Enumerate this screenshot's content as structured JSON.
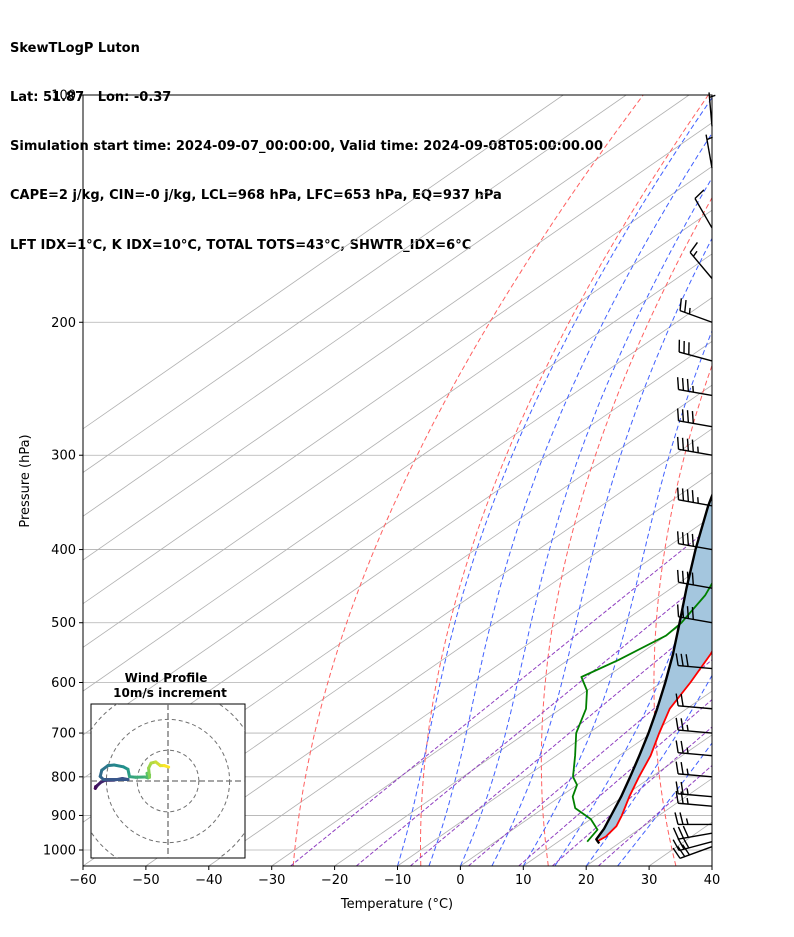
{
  "header": {
    "line1": "SkewTLogP Luton",
    "line2": "Lat: 51.87   Lon: -0.37",
    "line3": "Simulation start time: 2024-09-07_00:00:00, Valid time: 2024-09-08T05:00:00.00",
    "line4": "CAPE=2 j/kg, CIN=-0 j/kg, LCL=968 hPa, LFC=653 hPa, EQ=937 hPa",
    "line5": "LFT IDX=1°C, K IDX=10°C, TOTAL TOTS=43°C, SHWTR_IDX=6°C"
  },
  "chart_data": {
    "type": "skewt",
    "xlabel": "Temperature (°C)",
    "ylabel": "Pressure (hPa)",
    "xlim": [
      -60,
      40
    ],
    "ylim": [
      1050,
      100
    ],
    "x_ticks": [
      -60,
      -50,
      -40,
      -30,
      -20,
      -10,
      0,
      10,
      20,
      30,
      40
    ],
    "x_tick_labels": [
      "−60",
      "−50",
      "−40",
      "−30",
      "−20",
      "−10",
      "0",
      "10",
      "20",
      "30",
      "40"
    ],
    "y_ticks": [
      1000,
      900,
      800,
      700,
      600,
      500,
      400,
      300,
      200,
      100
    ],
    "grid": true,
    "skew_deg_per_logp": 75,
    "dry_adiabats_theta_C": [
      -30,
      -10,
      10,
      30,
      50,
      70,
      90,
      110,
      130
    ],
    "moist_adiabats_C": [
      -10,
      -5,
      0,
      5,
      10,
      15,
      20,
      25
    ],
    "mixing_ratio_lines": [
      0.4,
      1,
      2,
      4,
      7,
      10,
      16
    ],
    "colors": {
      "temperature": "#ff0000",
      "dewpoint": "#008000",
      "parcel": "#000000",
      "cape_fill": "#a4c6de",
      "dry_adiabat": "#ff6060",
      "moist_adiabat": "#4060ff",
      "mixing_ratio": "#9040c0",
      "isotherm": "#b0b0b0"
    },
    "temperature": [
      {
        "p": 975,
        "t": 16.1
      },
      {
        "p": 960,
        "t": 16.4
      },
      {
        "p": 930,
        "t": 15.7
      },
      {
        "p": 900,
        "t": 14.1
      },
      {
        "p": 850,
        "t": 11.0
      },
      {
        "p": 800,
        "t": 8.0
      },
      {
        "p": 750,
        "t": 5.0
      },
      {
        "p": 700,
        "t": 1.2
      },
      {
        "p": 650,
        "t": -2.7
      },
      {
        "p": 600,
        "t": -5.4
      },
      {
        "p": 550,
        "t": -8.7
      },
      {
        "p": 500,
        "t": -13.0
      },
      {
        "p": 450,
        "t": -19.0
      },
      {
        "p": 400,
        "t": -25.0
      },
      {
        "p": 350,
        "t": -32.3
      },
      {
        "p": 300,
        "t": -41.0
      },
      {
        "p": 270,
        "t": -47.0
      },
      {
        "p": 250,
        "t": -50.0
      },
      {
        "p": 220,
        "t": -53.5
      },
      {
        "p": 200,
        "t": -55.0
      },
      {
        "p": 185,
        "t": -55.5
      },
      {
        "p": 170,
        "t": -56.8
      },
      {
        "p": 150,
        "t": -58.0
      },
      {
        "p": 130,
        "t": -58.5
      },
      {
        "p": 115,
        "t": -57.7
      },
      {
        "p": 100,
        "t": -57.0
      }
    ],
    "dewpoint": [
      {
        "p": 975,
        "t": 14.6
      },
      {
        "p": 940,
        "t": 13.5
      },
      {
        "p": 910,
        "t": 10.0
      },
      {
        "p": 880,
        "t": 5.0
      },
      {
        "p": 850,
        "t": 2.0
      },
      {
        "p": 820,
        "t": 0.0
      },
      {
        "p": 800,
        "t": -2.5
      },
      {
        "p": 750,
        "t": -7.0
      },
      {
        "p": 700,
        "t": -12.0
      },
      {
        "p": 650,
        "t": -16.0
      },
      {
        "p": 615,
        "t": -20.0
      },
      {
        "p": 590,
        "t": -24.0
      },
      {
        "p": 560,
        "t": -22.0
      },
      {
        "p": 520,
        "t": -20.0
      },
      {
        "p": 500,
        "t": -20.5
      },
      {
        "p": 460,
        "t": -23.0
      },
      {
        "p": 430,
        "t": -26.0
      },
      {
        "p": 400,
        "t": -29.0
      },
      {
        "p": 350,
        "t": -33.5
      },
      {
        "p": 300,
        "t": -38.5
      },
      {
        "p": 250,
        "t": -44.5
      },
      {
        "p": 220,
        "t": -49.5
      },
      {
        "p": 200,
        "t": -53.5
      },
      {
        "p": 190,
        "t": -56.0
      },
      {
        "p": 175,
        "t": -58.5
      },
      {
        "p": 160,
        "t": -60.5
      },
      {
        "p": 140,
        "t": -63.0
      },
      {
        "p": 120,
        "t": -66.0
      },
      {
        "p": 100,
        "t": -70.0
      }
    ],
    "parcel": [
      {
        "p": 980,
        "t": 16.9
      },
      {
        "p": 968,
        "t": 15.5
      },
      {
        "p": 937,
        "t": 14.3
      },
      {
        "p": 900,
        "t": 12.4
      },
      {
        "p": 850,
        "t": 9.7
      },
      {
        "p": 800,
        "t": 6.6
      },
      {
        "p": 750,
        "t": 3.2
      },
      {
        "p": 700,
        "t": -0.5
      },
      {
        "p": 650,
        "t": -4.7
      },
      {
        "p": 600,
        "t": -9.4
      },
      {
        "p": 550,
        "t": -14.7
      },
      {
        "p": 500,
        "t": -20.8
      },
      {
        "p": 450,
        "t": -27.6
      },
      {
        "p": 400,
        "t": -35.0
      },
      {
        "p": 350,
        "t": -43.0
      },
      {
        "p": 300,
        "t": -51.5
      },
      {
        "p": 250,
        "t": -61.0
      },
      {
        "p": 200,
        "t": -72.0
      },
      {
        "p": 150,
        "t": -85.0
      },
      {
        "p": 100,
        "t": -103.5
      }
    ],
    "wind_barbs": [
      {
        "p": 990,
        "speed_kt": 30,
        "dir_deg": 250
      },
      {
        "p": 975,
        "speed_kt": 30,
        "dir_deg": 255
      },
      {
        "p": 950,
        "speed_kt": 30,
        "dir_deg": 260
      },
      {
        "p": 925,
        "speed_kt": 25,
        "dir_deg": 270
      },
      {
        "p": 875,
        "speed_kt": 25,
        "dir_deg": 275
      },
      {
        "p": 850,
        "speed_kt": 25,
        "dir_deg": 275
      },
      {
        "p": 800,
        "speed_kt": 25,
        "dir_deg": 275
      },
      {
        "p": 750,
        "speed_kt": 25,
        "dir_deg": 275
      },
      {
        "p": 700,
        "speed_kt": 25,
        "dir_deg": 275
      },
      {
        "p": 650,
        "speed_kt": 20,
        "dir_deg": 275
      },
      {
        "p": 575,
        "speed_kt": 30,
        "dir_deg": 275
      },
      {
        "p": 500,
        "speed_kt": 40,
        "dir_deg": 280
      },
      {
        "p": 450,
        "speed_kt": 40,
        "dir_deg": 280
      },
      {
        "p": 400,
        "speed_kt": 40,
        "dir_deg": 280
      },
      {
        "p": 350,
        "speed_kt": 45,
        "dir_deg": 280
      },
      {
        "p": 300,
        "speed_kt": 45,
        "dir_deg": 280
      },
      {
        "p": 275,
        "speed_kt": 40,
        "dir_deg": 280
      },
      {
        "p": 250,
        "speed_kt": 35,
        "dir_deg": 280
      },
      {
        "p": 225,
        "speed_kt": 30,
        "dir_deg": 285
      },
      {
        "p": 200,
        "speed_kt": 25,
        "dir_deg": 290
      },
      {
        "p": 175,
        "speed_kt": 15,
        "dir_deg": 320
      },
      {
        "p": 150,
        "speed_kt": 10,
        "dir_deg": 330
      },
      {
        "p": 125,
        "speed_kt": 5,
        "dir_deg": 350
      },
      {
        "p": 110,
        "speed_kt": 5,
        "dir_deg": 355
      }
    ],
    "hodograph": {
      "title": "Wind Profile",
      "subtitle": "10m/s increment",
      "ring_step_ms": 10,
      "rings": 3,
      "range_ms": 25,
      "points": [
        {
          "u": -23.5,
          "v": -1.8
        },
        {
          "u": -23.6,
          "v": -2.4
        },
        {
          "u": -23.0,
          "v": -1.5
        },
        {
          "u": -21.8,
          "v": -0.4
        },
        {
          "u": -20.5,
          "v": 0.2
        },
        {
          "u": -17.5,
          "v": 0.3
        },
        {
          "u": -14.8,
          "v": 0.8
        },
        {
          "u": -13.0,
          "v": 0.5
        },
        {
          "u": -21.0,
          "v": 0.5
        },
        {
          "u": -22.0,
          "v": 1.5
        },
        {
          "u": -21.5,
          "v": 3.5
        },
        {
          "u": -19.5,
          "v": 5.0
        },
        {
          "u": -17.5,
          "v": 5.2
        },
        {
          "u": -14.5,
          "v": 4.6
        },
        {
          "u": -13.0,
          "v": 3.8
        },
        {
          "u": -12.5,
          "v": 1.4
        },
        {
          "u": -10.5,
          "v": 1.2
        },
        {
          "u": -7.5,
          "v": 1.3
        },
        {
          "u": -6.5,
          "v": 1.0
        },
        {
          "u": -6.8,
          "v": 2.5
        },
        {
          "u": -6.0,
          "v": 2.0
        },
        {
          "u": -6.0,
          "v": 1.2
        },
        {
          "u": -6.3,
          "v": 4.2
        },
        {
          "u": -5.5,
          "v": 5.8
        },
        {
          "u": -4.0,
          "v": 6.2
        },
        {
          "u": -2.5,
          "v": 5.0
        },
        {
          "u": -1.2,
          "v": 5.0
        },
        {
          "u": 0.2,
          "v": 4.5
        }
      ]
    }
  }
}
